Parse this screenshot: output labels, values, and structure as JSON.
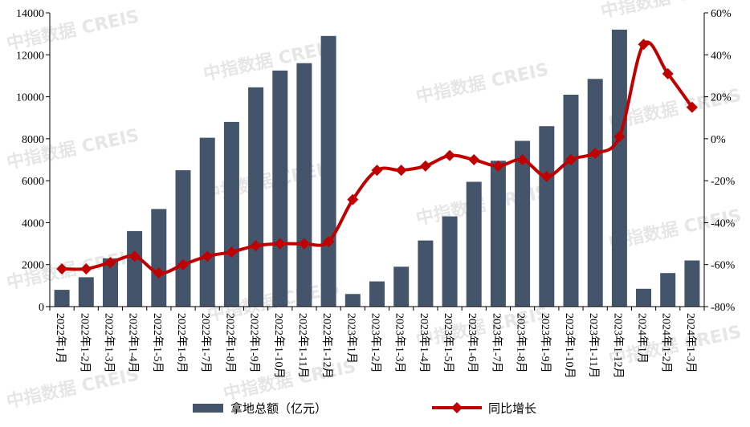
{
  "chart_data": {
    "type": "bar",
    "categories": [
      "2022年1月",
      "2022年1-2月",
      "2022年1-3月",
      "2022年1-4月",
      "2022年1-5月",
      "2022年1-6月",
      "2022年1-7月",
      "2022年1-8月",
      "2022年1-9月",
      "2022年1-10月",
      "2022年1-11月",
      "2022年1-12月",
      "2023年1月",
      "2023年1-2月",
      "2023年1-3月",
      "2023年1-4月",
      "2023年1-5月",
      "2023年1-6月",
      "2023年1-7月",
      "2023年1-8月",
      "2023年1-9月",
      "2023年1-10月",
      "2023年1-11月",
      "2023年1-12月",
      "2024年1月",
      "2024年1-2月",
      "2024年1-3月"
    ],
    "series": [
      {
        "name": "拿地总额（亿元）",
        "type": "bar",
        "axis": "left",
        "color": "#44546a",
        "values": [
          800,
          1400,
          2300,
          3600,
          4650,
          6500,
          8050,
          8800,
          10450,
          11250,
          11600,
          12900,
          600,
          1200,
          1900,
          3150,
          4300,
          5950,
          6950,
          7900,
          8600,
          10100,
          10850,
          13200,
          850,
          1600,
          2200
        ]
      },
      {
        "name": "同比增长",
        "type": "line",
        "axis": "right",
        "color": "#c00000",
        "values": [
          -62,
          -62,
          -59,
          -56,
          -64,
          -60,
          -56,
          -54,
          -51,
          -50,
          -50,
          -49,
          -29,
          -15,
          -15,
          -13,
          -8,
          -10,
          -13,
          -10,
          -18,
          -10,
          -7,
          1,
          45,
          31,
          15
        ]
      }
    ],
    "y_left": {
      "ylim": [
        0,
        14000
      ],
      "ticks": [
        "0",
        "2000",
        "4000",
        "6000",
        "8000",
        "10000",
        "12000",
        "14000"
      ]
    },
    "y_right": {
      "ylim": [
        -80,
        60
      ],
      "ticks": [
        "-80%",
        "-60%",
        "-40%",
        "-20%",
        "0%",
        "20%",
        "40%",
        "60%"
      ]
    },
    "legend": {
      "placement": "bottom"
    },
    "grid": false,
    "watermark": "中指数据 CREIS"
  }
}
